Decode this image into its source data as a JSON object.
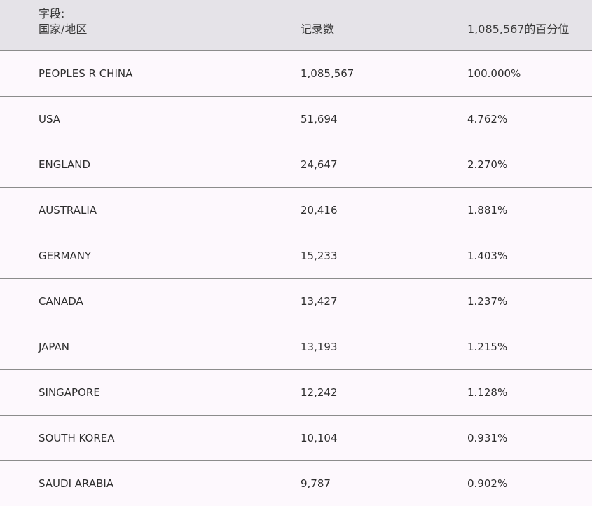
{
  "header": {
    "field_label": "字段:",
    "field_name": "国家/地区",
    "count_label": "记录数",
    "pct_label": "1,085,567的百分位"
  },
  "rows": [
    {
      "country": "PEOPLES R CHINA",
      "count": "1,085,567",
      "pct": "100.000%"
    },
    {
      "country": "USA",
      "count": "51,694",
      "pct": "4.762%"
    },
    {
      "country": "ENGLAND",
      "count": "24,647",
      "pct": "2.270%"
    },
    {
      "country": "AUSTRALIA",
      "count": "20,416",
      "pct": "1.881%"
    },
    {
      "country": "GERMANY",
      "count": "15,233",
      "pct": "1.403%"
    },
    {
      "country": "CANADA",
      "count": "13,427",
      "pct": "1.237%"
    },
    {
      "country": "JAPAN",
      "count": "13,193",
      "pct": "1.215%"
    },
    {
      "country": "SINGAPORE",
      "count": "12,242",
      "pct": "1.128%"
    },
    {
      "country": "SOUTH KOREA",
      "count": "10,104",
      "pct": "0.931%"
    },
    {
      "country": "SAUDI ARABIA",
      "count": "9,787",
      "pct": "0.902%"
    }
  ]
}
